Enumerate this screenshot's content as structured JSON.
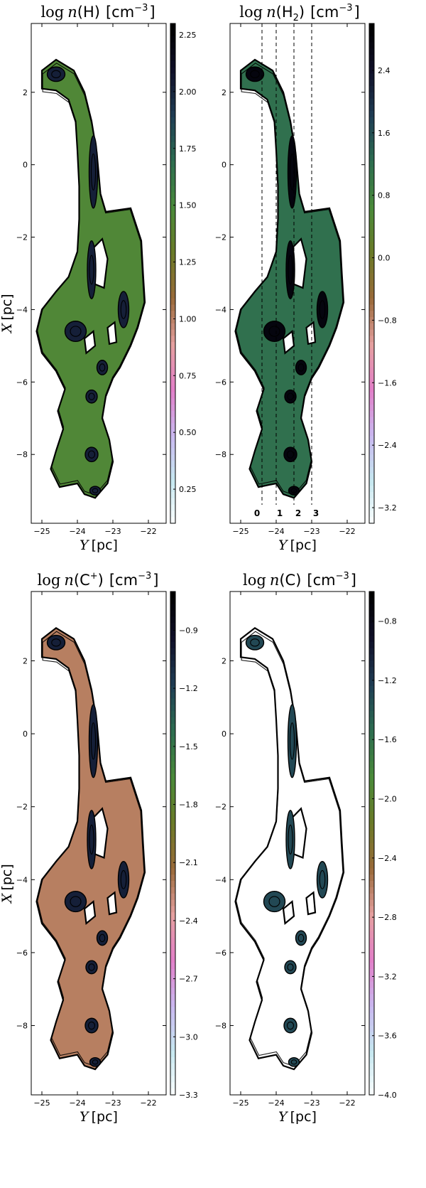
{
  "figure": {
    "colors": {
      "cmap": [
        "#ffffff",
        "#c6e8f0",
        "#c9b8f0",
        "#e27fc8",
        "#e5a0a0",
        "#9a6a3a",
        "#6b7a28",
        "#4a8a3a",
        "#2e6e50",
        "#1f3f55",
        "#10102a",
        "#000000"
      ],
      "frame": "#000000",
      "contour": "#000000",
      "dash": "#000000"
    }
  },
  "chart_data": [
    {
      "type": "heatmap",
      "title_math": "log n",
      "title_species": "(H)",
      "title_unit": "[cm",
      "title_exp": "−3",
      "title_close": "]",
      "xlabel_var": "Y",
      "xlabel_unit": "[pc]",
      "ylabel_var": "X",
      "ylabel_unit": "[pc]",
      "xlim": [
        -25.3,
        -21.5
      ],
      "ylim": [
        -9.9,
        3.9
      ],
      "xticks": [
        "−25",
        "−24",
        "−23",
        "−22"
      ],
      "xtick_values": [
        -25,
        -24,
        -23,
        -22
      ],
      "yticks": [
        "2",
        "0",
        "−2",
        "−4",
        "−6",
        "−8"
      ],
      "ytick_values": [
        2,
        0,
        -2,
        -4,
        -6,
        -8
      ],
      "colorbar_ticks": [
        "2.25",
        "2.00",
        "1.75",
        "1.50",
        "1.25",
        "1.00",
        "0.75",
        "0.50",
        "0.25"
      ],
      "colorbar_values": [
        2.25,
        2.0,
        1.75,
        1.5,
        1.25,
        1.0,
        0.75,
        0.5,
        0.25
      ],
      "colorbar_range": [
        0.1,
        2.3
      ],
      "fill_level": 0.62,
      "core_level": 0.88,
      "slits": [],
      "slit_labels": []
    },
    {
      "type": "heatmap",
      "title_math": "log n",
      "title_species": "(H",
      "title_sub": "2",
      "title_species_close": ")",
      "title_unit": "[cm",
      "title_exp": "−3",
      "title_close": "]",
      "xlabel_var": "Y",
      "xlabel_unit": "[pc]",
      "ylabel_var": "",
      "ylabel_unit": "",
      "xlim": [
        -25.3,
        -21.5
      ],
      "ylim": [
        -9.9,
        3.9
      ],
      "xticks": [
        "−25",
        "−24",
        "−23",
        "−22"
      ],
      "xtick_values": [
        -25,
        -24,
        -23,
        -22
      ],
      "yticks": [
        "2",
        "0",
        "−2",
        "−4",
        "−6",
        "−8"
      ],
      "ytick_values": [
        2,
        0,
        -2,
        -4,
        -6,
        -8
      ],
      "colorbar_ticks": [
        "2.4",
        "1.6",
        "0.8",
        "0.0",
        "−0.8",
        "−1.6",
        "−2.4",
        "−3.2"
      ],
      "colorbar_values": [
        2.4,
        1.6,
        0.8,
        0.0,
        -0.8,
        -1.6,
        -2.4,
        -3.2
      ],
      "colorbar_range": [
        -3.4,
        3.0
      ],
      "fill_level": 0.72,
      "core_level": 0.97,
      "slits": [
        -24.4,
        -24.0,
        -23.5,
        -23.0
      ],
      "slit_labels": [
        "0",
        "1",
        "2",
        "3"
      ]
    },
    {
      "type": "heatmap",
      "title_math": "log n",
      "title_species": "(C",
      "title_sup": "+",
      "title_species_close": ")",
      "title_unit": "[cm",
      "title_exp": "−3",
      "title_close": "]",
      "xlabel_var": "Y",
      "xlabel_unit": "[pc]",
      "ylabel_var": "X",
      "ylabel_unit": "[pc]",
      "xlim": [
        -25.3,
        -21.5
      ],
      "ylim": [
        -9.9,
        3.9
      ],
      "xticks": [
        "−25",
        "−24",
        "−23",
        "−22"
      ],
      "xtick_values": [
        -25,
        -24,
        -23,
        -22
      ],
      "yticks": [
        "2",
        "0",
        "−2",
        "−4",
        "−6",
        "−8"
      ],
      "ytick_values": [
        2,
        0,
        -2,
        -4,
        -6,
        -8
      ],
      "colorbar_ticks": [
        "−0.9",
        "−1.2",
        "−1.5",
        "−1.8",
        "−2.1",
        "−2.4",
        "−2.7",
        "−3.0",
        "−3.3"
      ],
      "colorbar_values": [
        -0.9,
        -1.2,
        -1.5,
        -1.8,
        -2.1,
        -2.4,
        -2.7,
        -3.0,
        -3.3
      ],
      "colorbar_range": [
        -3.3,
        -0.7
      ],
      "fill_level": 0.42,
      "core_level": 0.88,
      "slits": [],
      "slit_labels": []
    },
    {
      "type": "heatmap",
      "title_math": "log n",
      "title_species": "(C)",
      "title_unit": "[cm",
      "title_exp": "−3",
      "title_close": "]",
      "xlabel_var": "Y",
      "xlabel_unit": "[pc]",
      "ylabel_var": "",
      "ylabel_unit": "",
      "xlim": [
        -25.3,
        -21.5
      ],
      "ylim": [
        -9.9,
        3.9
      ],
      "xticks": [
        "−25",
        "−24",
        "−23",
        "−22"
      ],
      "xtick_values": [
        -25,
        -24,
        -23,
        -22
      ],
      "yticks": [
        "2",
        "0",
        "−2",
        "−4",
        "−6",
        "−8"
      ],
      "ytick_values": [
        2,
        0,
        -2,
        -4,
        -6,
        -8
      ],
      "colorbar_ticks": [
        "−0.8",
        "−1.2",
        "−1.6",
        "−2.0",
        "−2.4",
        "−2.8",
        "−3.2",
        "−3.6",
        "−4.0"
      ],
      "colorbar_values": [
        -0.8,
        -1.2,
        -1.6,
        -2.0,
        -2.4,
        -2.8,
        -3.2,
        -3.6,
        -4.0
      ],
      "colorbar_range": [
        -4.0,
        -0.6
      ],
      "fill_level": 0.0,
      "core_level": 0.8,
      "slits": [],
      "slit_labels": []
    }
  ]
}
